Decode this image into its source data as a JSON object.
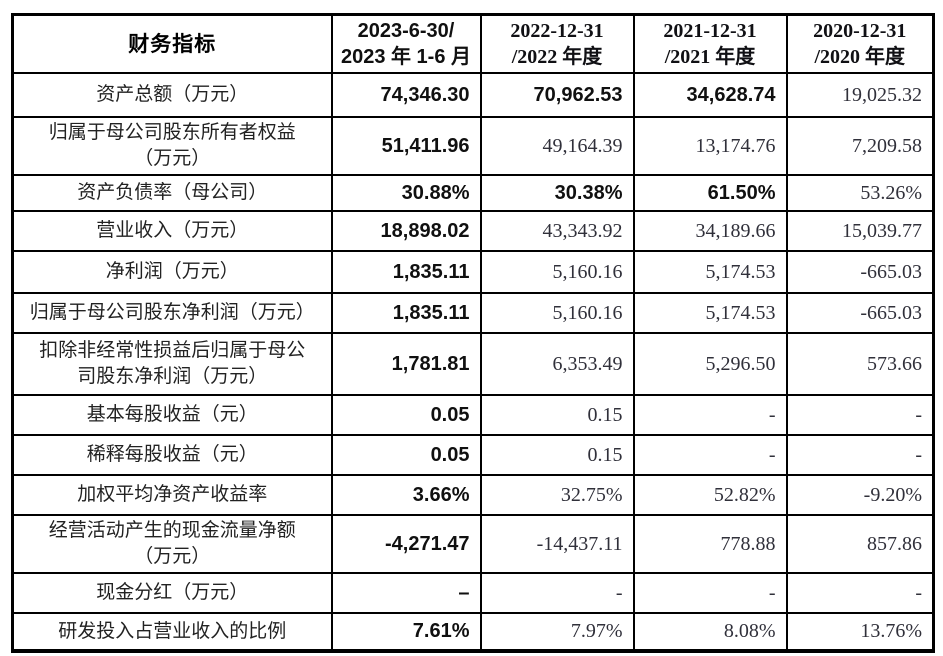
{
  "table": {
    "header": {
      "indicator": "财务指标",
      "periods": [
        {
          "line1": "2023-6-30/",
          "line2": "2023 年 1-6 月"
        },
        {
          "line1": "2022-12-31",
          "line2": "/2022 年度"
        },
        {
          "line1": "2021-12-31",
          "line2": "/2021 年度"
        },
        {
          "line1": "2020-12-31",
          "line2": "/2020 年度"
        }
      ]
    },
    "rows": [
      {
        "label": "资产总额（万元）",
        "values": [
          "74,346.30",
          "70,962.53",
          "34,628.74",
          "19,025.32"
        ],
        "bold": [
          true,
          true,
          true,
          false
        ]
      },
      {
        "label": "归属于母公司股东所有者权益\n（万元）",
        "values": [
          "51,411.96",
          "49,164.39",
          "13,174.76",
          "7,209.58"
        ],
        "bold": [
          true,
          false,
          false,
          false
        ]
      },
      {
        "label": "资产负债率（母公司）",
        "values": [
          "30.88%",
          "30.38%",
          "61.50%",
          "53.26%"
        ],
        "bold": [
          true,
          true,
          true,
          false
        ]
      },
      {
        "label": "营业收入（万元）",
        "values": [
          "18,898.02",
          "43,343.92",
          "34,189.66",
          "15,039.77"
        ],
        "bold": [
          true,
          false,
          false,
          false
        ]
      },
      {
        "label": "净利润（万元）",
        "values": [
          "1,835.11",
          "5,160.16",
          "5,174.53",
          "-665.03"
        ],
        "bold": [
          true,
          false,
          false,
          false
        ]
      },
      {
        "label": "归属于母公司股东净利润（万元）",
        "values": [
          "1,835.11",
          "5,160.16",
          "5,174.53",
          "-665.03"
        ],
        "bold": [
          true,
          false,
          false,
          false
        ]
      },
      {
        "label": "扣除非经常性损益后归属于母公\n司股东净利润（万元）",
        "values": [
          "1,781.81",
          "6,353.49",
          "5,296.50",
          "573.66"
        ],
        "bold": [
          true,
          false,
          false,
          false
        ]
      },
      {
        "label": "基本每股收益（元）",
        "values": [
          "0.05",
          "0.15",
          "-",
          "-"
        ],
        "bold": [
          true,
          false,
          false,
          false
        ]
      },
      {
        "label": "稀释每股收益（元）",
        "values": [
          "0.05",
          "0.15",
          "-",
          "-"
        ],
        "bold": [
          true,
          false,
          false,
          false
        ]
      },
      {
        "label": "加权平均净资产收益率",
        "values": [
          "3.66%",
          "32.75%",
          "52.82%",
          "-9.20%"
        ],
        "bold": [
          true,
          false,
          false,
          false
        ]
      },
      {
        "label": "经营活动产生的现金流量净额\n（万元）",
        "values": [
          "-4,271.47",
          "-14,437.11",
          "778.88",
          "857.86"
        ],
        "bold": [
          true,
          false,
          false,
          false
        ]
      },
      {
        "label": "现金分红（万元）",
        "values": [
          "–",
          "-",
          "-",
          "-"
        ],
        "bold": [
          true,
          false,
          false,
          false
        ]
      },
      {
        "label": "研发投入占营业收入的比例",
        "values": [
          "7.61%",
          "7.97%",
          "8.08%",
          "13.76%"
        ],
        "bold": [
          true,
          false,
          false,
          false
        ]
      }
    ]
  },
  "colors": {
    "border": "#000000",
    "bold_text": "#101010",
    "serif_text": "#30303a",
    "background": "#ffffff"
  }
}
